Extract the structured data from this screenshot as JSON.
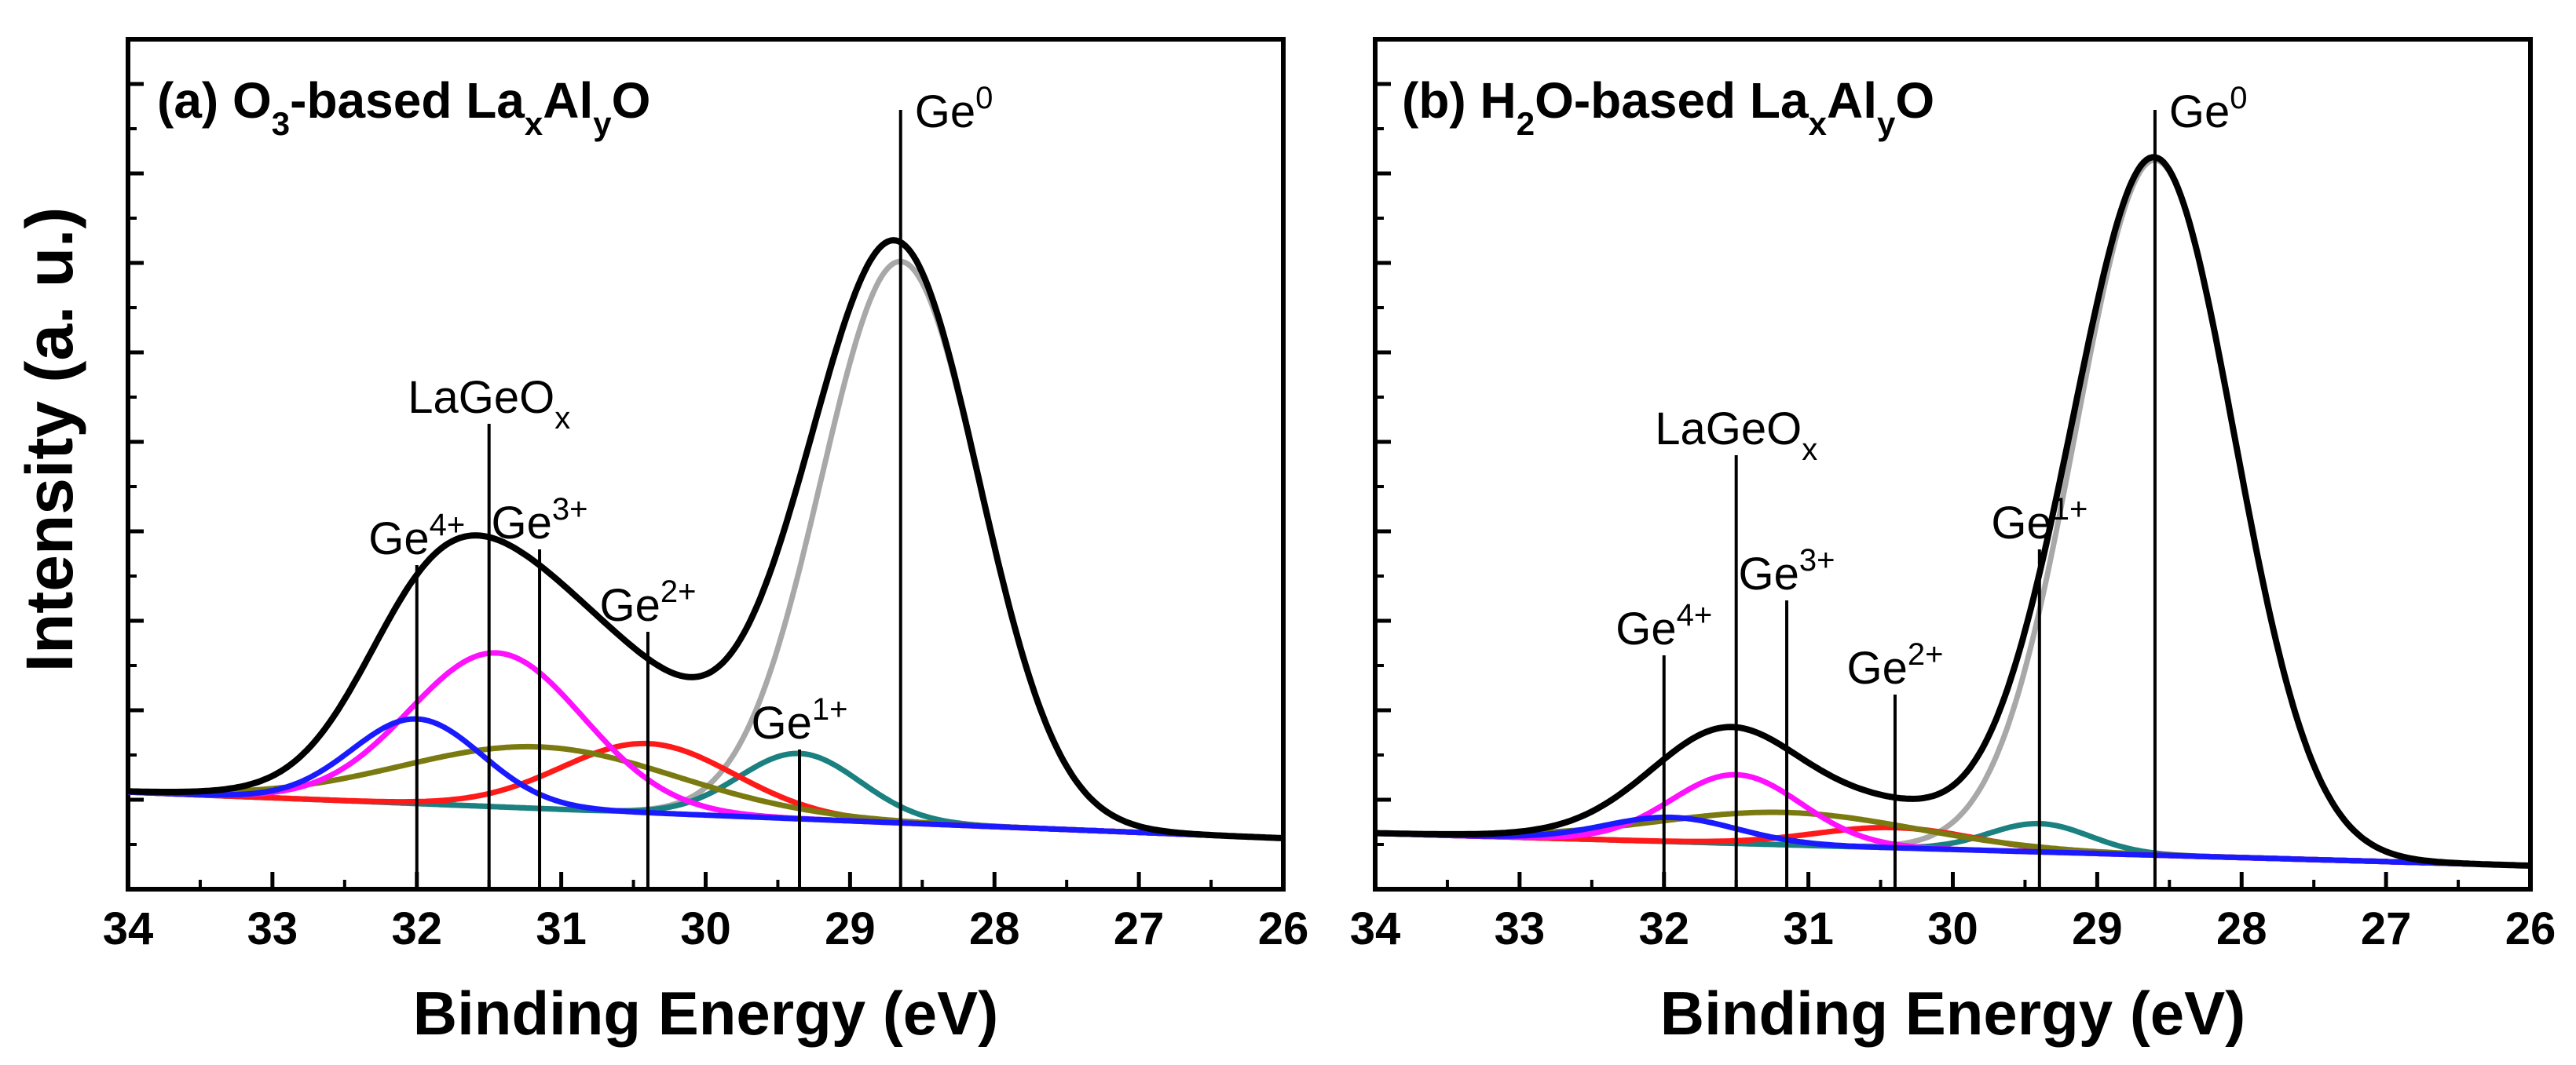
{
  "y_axis_label": "Intensity (a. u.)",
  "chart_data": [
    {
      "id": "a",
      "type": "line",
      "title_parts": [
        {
          "t": "(a) O",
          "v": "n"
        },
        {
          "t": "3",
          "v": "sub"
        },
        {
          "t": "-based La",
          "v": "n"
        },
        {
          "t": "x",
          "v": "sub"
        },
        {
          "t": "Al",
          "v": "n"
        },
        {
          "t": "y",
          "v": "sub"
        },
        {
          "t": "O",
          "v": "n"
        }
      ],
      "xlabel": "Binding Energy (eV)",
      "ylabel": "Intensity (a. u.)",
      "xlim": [
        34,
        26
      ],
      "ylim": [
        0,
        1.0
      ],
      "x_ticks": [
        34,
        33,
        32,
        31,
        30,
        29,
        28,
        27,
        26
      ],
      "y_ticks_unlabeled": true,
      "background": {
        "start": 0.06,
        "end": 0.0
      },
      "components": [
        {
          "name": "Ge0",
          "center": 28.65,
          "height": 0.73,
          "width": 0.55,
          "color": "#a8a8a8"
        },
        {
          "name": "Ge1+",
          "center": 29.35,
          "height": 0.085,
          "width": 0.42,
          "color": "#1a8080"
        },
        {
          "name": "Ge2+",
          "center": 30.4,
          "height": 0.09,
          "width": 0.6,
          "color": "#ff1a1a"
        },
        {
          "name": "Ge3+",
          "center": 31.15,
          "height": 0.08,
          "width": 0.95,
          "color": "#7a7a10"
        },
        {
          "name": "LaGeOx",
          "center": 31.45,
          "height": 0.2,
          "width": 0.6,
          "color": "#ff10ff"
        },
        {
          "name": "Ge4+",
          "center": 32.0,
          "height": 0.11,
          "width": 0.45,
          "color": "#1a1aff"
        }
      ],
      "envelope_color": "#000000",
      "markers": [
        {
          "label": "Ge",
          "sup": "0",
          "x": 28.65
        },
        {
          "label": "Ge",
          "sup": "1+",
          "x": 29.35
        },
        {
          "label": "Ge",
          "sup": "2+",
          "x": 30.4
        },
        {
          "label": "Ge",
          "sup": "3+",
          "x": 31.15
        },
        {
          "label": "LaGeO",
          "sub": "x",
          "x": 31.5
        },
        {
          "label": "Ge",
          "sup": "4+",
          "x": 32.0
        }
      ]
    },
    {
      "id": "b",
      "type": "line",
      "title_parts": [
        {
          "t": "(b) H",
          "v": "n"
        },
        {
          "t": "2",
          "v": "sub"
        },
        {
          "t": "O-based La",
          "v": "n"
        },
        {
          "t": "x",
          "v": "sub"
        },
        {
          "t": "Al",
          "v": "n"
        },
        {
          "t": "y",
          "v": "sub"
        },
        {
          "t": "O",
          "v": "n"
        }
      ],
      "xlabel": "Binding Energy (eV)",
      "ylabel": "Intensity (a. u.)",
      "xlim": [
        34,
        26
      ],
      "ylim": [
        0,
        1.0
      ],
      "x_ticks": [
        34,
        33,
        32,
        31,
        30,
        29,
        28,
        27,
        26
      ],
      "y_ticks_unlabeled": true,
      "background": {
        "start": 0.04,
        "end": 0.0
      },
      "components": [
        {
          "name": "Ge0",
          "center": 28.6,
          "height": 0.86,
          "width": 0.55,
          "color": "#a8a8a8"
        },
        {
          "name": "Ge1+",
          "center": 29.4,
          "height": 0.035,
          "width": 0.35,
          "color": "#1a8080"
        },
        {
          "name": "Ge2+",
          "center": 30.4,
          "height": 0.025,
          "width": 0.55,
          "color": "#ff1a1a"
        },
        {
          "name": "Ge3+",
          "center": 31.15,
          "height": 0.04,
          "width": 0.9,
          "color": "#7a7a10"
        },
        {
          "name": "LaGeOx",
          "center": 31.5,
          "height": 0.085,
          "width": 0.45,
          "color": "#ff10ff"
        },
        {
          "name": "Ge4+",
          "center": 31.95,
          "height": 0.03,
          "width": 0.45,
          "color": "#1a1aff"
        }
      ],
      "envelope_color": "#000000",
      "markers": [
        {
          "label": "Ge",
          "sup": "0",
          "x": 28.6
        },
        {
          "label": "Ge",
          "sup": "1+",
          "x": 29.4
        },
        {
          "label": "Ge",
          "sup": "2+",
          "x": 30.4
        },
        {
          "label": "Ge",
          "sup": "3+",
          "x": 31.15
        },
        {
          "label": "LaGeO",
          "sub": "x",
          "x": 31.5
        },
        {
          "label": "Ge",
          "sup": "4+",
          "x": 32.0
        }
      ]
    }
  ]
}
